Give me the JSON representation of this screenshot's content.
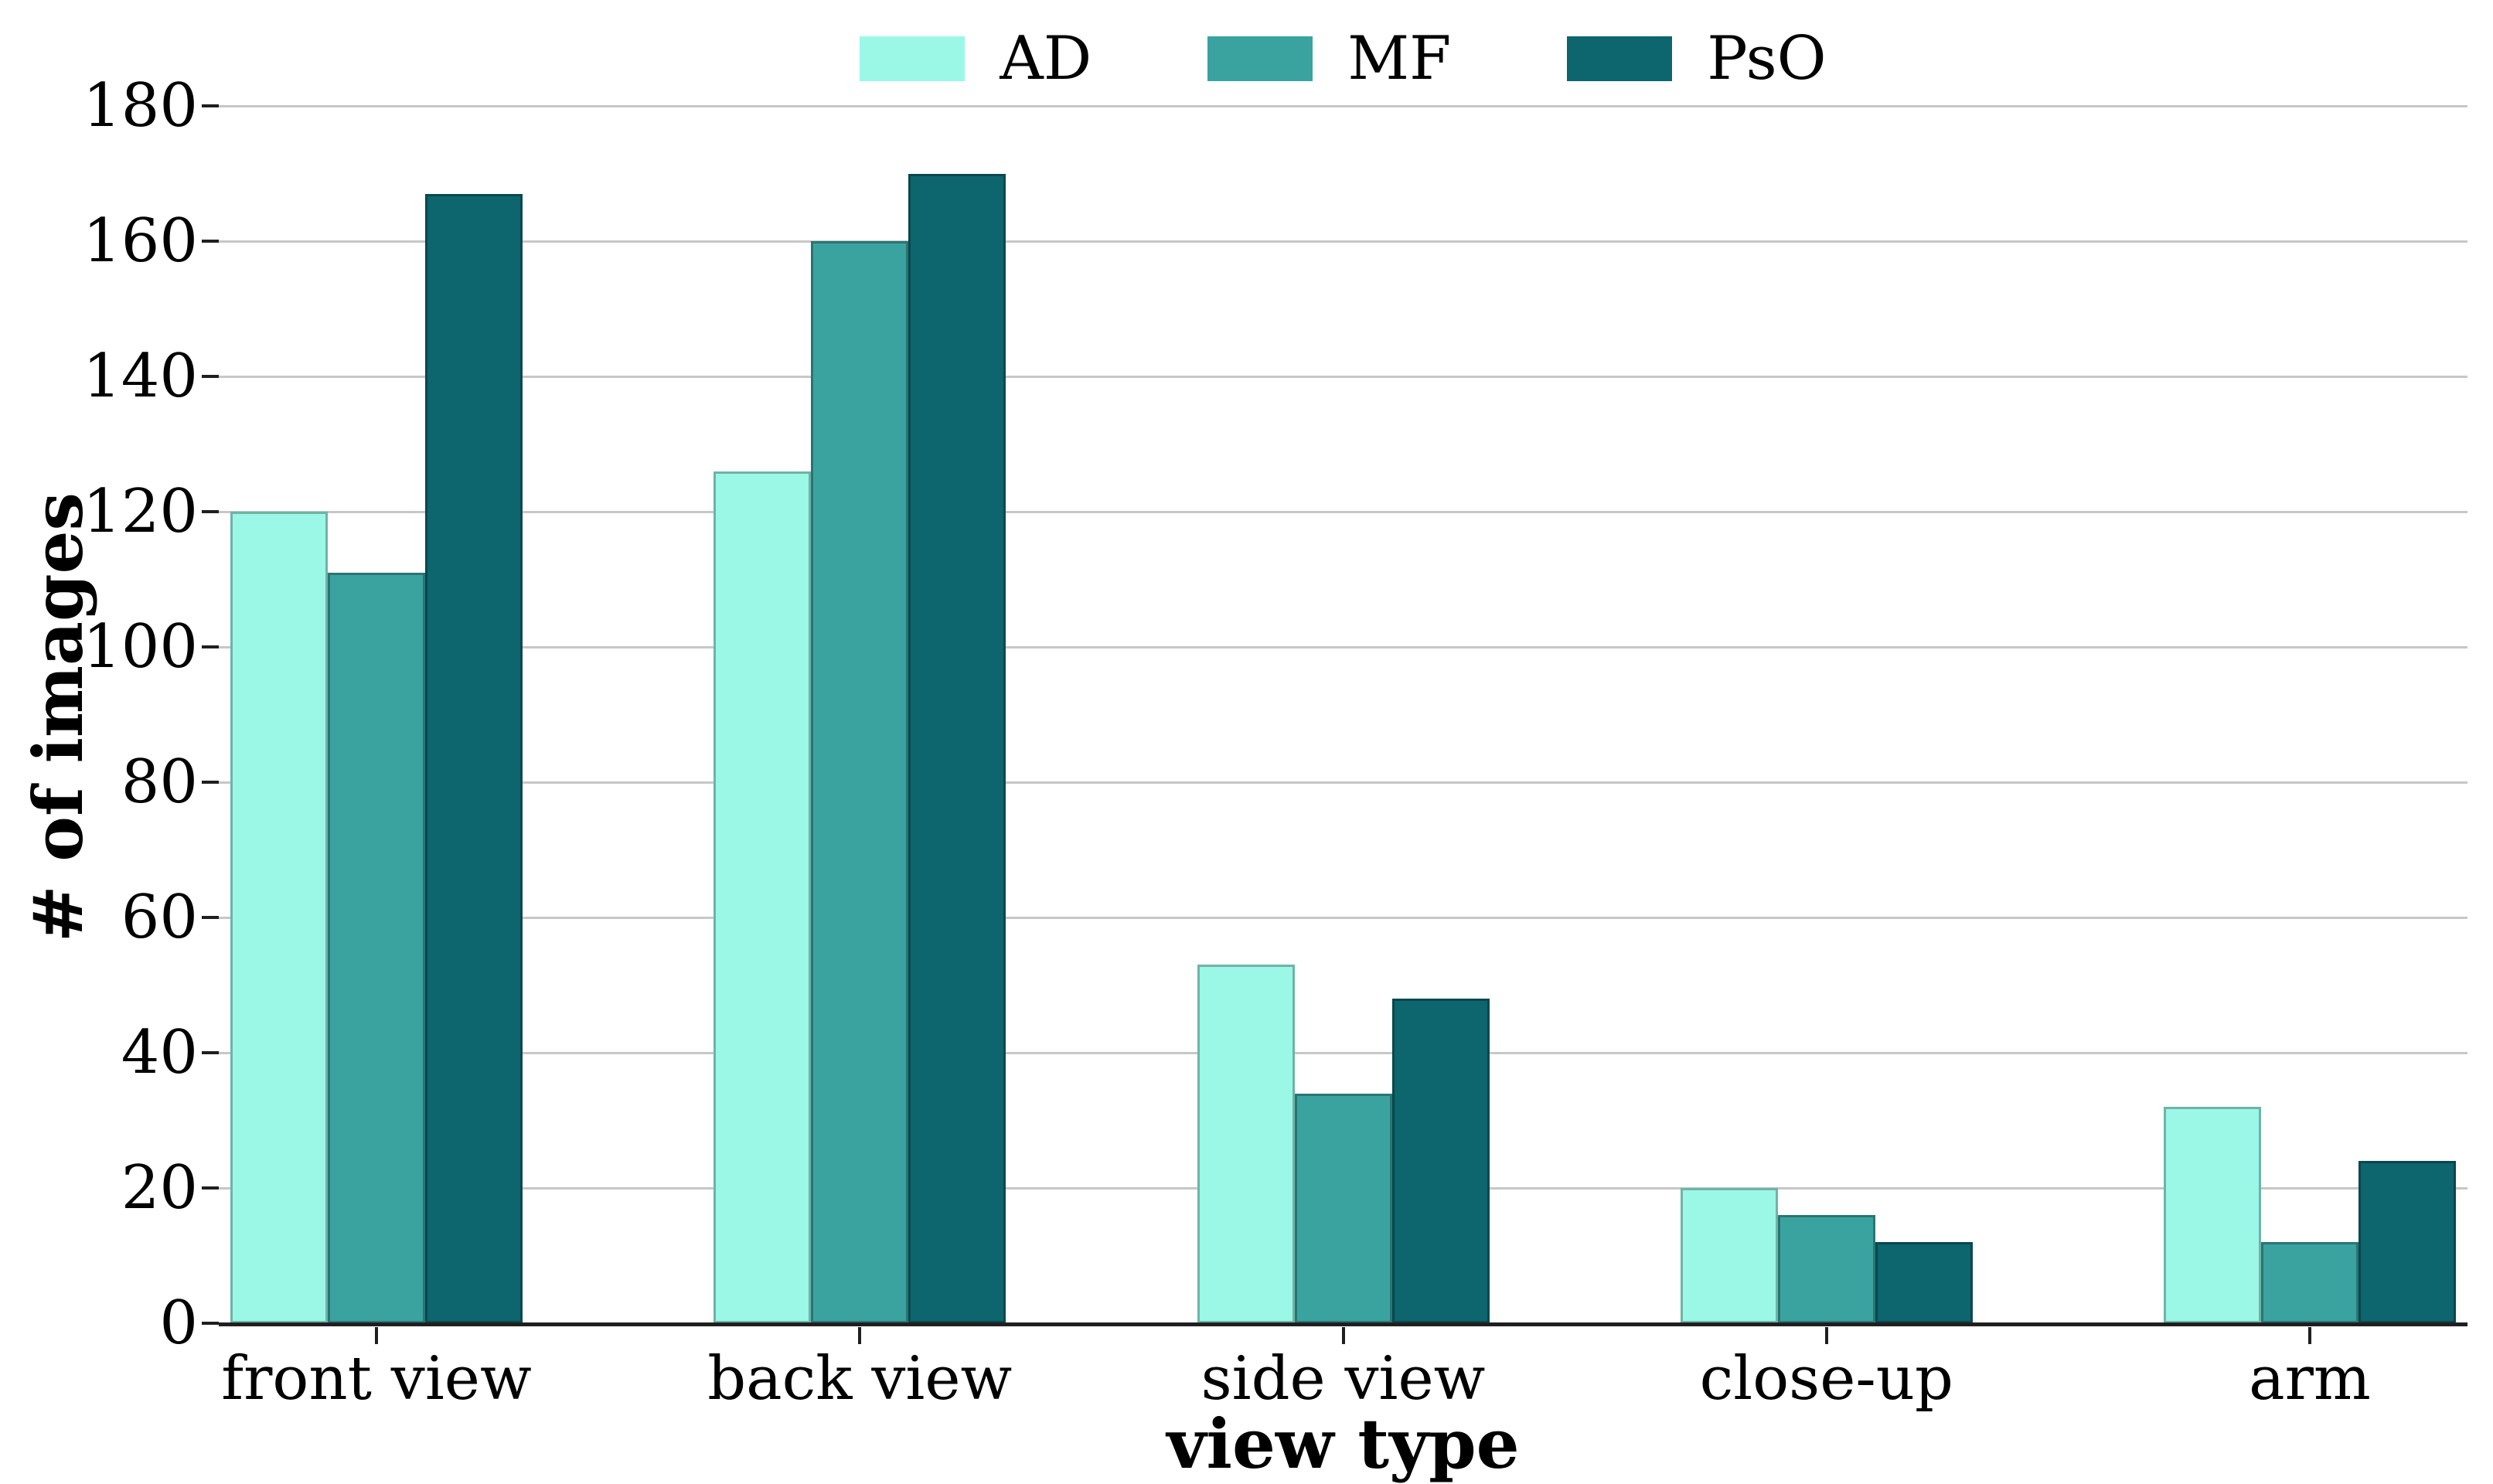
{
  "figure": {
    "background": "#ffffff"
  },
  "chart_data": {
    "type": "bar",
    "title": "",
    "xlabel": "view type",
    "ylabel": "# of images",
    "categories": [
      "front view",
      "back view",
      "side view",
      "close-up",
      "arm"
    ],
    "series": [
      {
        "name": "AD",
        "color": "#9bf8e6",
        "values": [
          120,
          126,
          53,
          20,
          32
        ]
      },
      {
        "name": "MF",
        "color": "#3aa3a0",
        "values": [
          111,
          160,
          34,
          16,
          12
        ]
      },
      {
        "name": "PsO",
        "color": "#0d656d",
        "values": [
          167,
          170,
          48,
          12,
          24
        ]
      }
    ],
    "ylim": [
      0,
      180
    ],
    "y_ticks": [
      0,
      20,
      40,
      60,
      80,
      100,
      120,
      140,
      160,
      180
    ],
    "grid": true,
    "legend_position": "top-center",
    "legend_frame": false
  },
  "style": {
    "grid_color": "#c7c7c7",
    "axis_color": "#1f1f1f",
    "text_color": "#000000",
    "bar_edge": "rgba(0,0,0,0.28)"
  }
}
